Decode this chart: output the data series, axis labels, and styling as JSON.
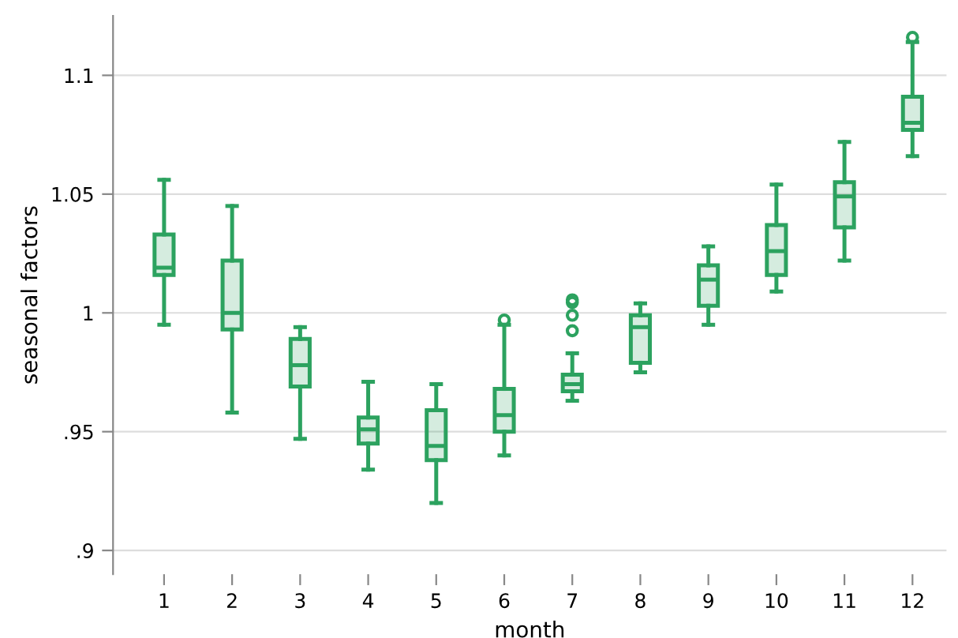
{
  "chart_data": {
    "type": "box",
    "xlabel": "month",
    "ylabel": "seasonal factors",
    "categories": [
      "1",
      "2",
      "3",
      "4",
      "5",
      "6",
      "7",
      "8",
      "9",
      "10",
      "11",
      "12"
    ],
    "color": "#2ca25f",
    "boxes": [
      {
        "low": 0.995,
        "q1": 1.016,
        "median": 1.019,
        "q3": 1.033,
        "high": 1.056
      },
      {
        "low": 0.958,
        "q1": 0.993,
        "median": 1.0,
        "q3": 1.022,
        "high": 1.045
      },
      {
        "low": 0.947,
        "q1": 0.969,
        "median": 0.978,
        "q3": 0.989,
        "high": 0.994
      },
      {
        "low": 0.934,
        "q1": 0.945,
        "median": 0.951,
        "q3": 0.956,
        "high": 0.971
      },
      {
        "low": 0.92,
        "q1": 0.938,
        "median": 0.944,
        "q3": 0.959,
        "high": 0.97
      },
      {
        "low": 0.94,
        "q1": 0.95,
        "median": 0.957,
        "q3": 0.968,
        "high": 0.995,
        "outliers": [
          0.997
        ]
      },
      {
        "low": 0.963,
        "q1": 0.967,
        "median": 0.97,
        "q3": 0.974,
        "high": 0.983,
        "outliers": [
          1.0055,
          1.0044,
          0.999,
          0.9925
        ]
      },
      {
        "low": 0.975,
        "q1": 0.979,
        "median": 0.994,
        "q3": 0.999,
        "high": 1.004
      },
      {
        "low": 0.995,
        "q1": 1.003,
        "median": 1.014,
        "q3": 1.02,
        "high": 1.028
      },
      {
        "low": 1.009,
        "q1": 1.016,
        "median": 1.026,
        "q3": 1.037,
        "high": 1.054
      },
      {
        "low": 1.022,
        "q1": 1.036,
        "median": 1.049,
        "q3": 1.055,
        "high": 1.072
      },
      {
        "low": 1.066,
        "q1": 1.077,
        "median": 1.08,
        "q3": 1.091,
        "high": 1.114,
        "outliers": [
          1.116
        ]
      }
    ],
    "ylim": [
      0.89,
      1.125
    ],
    "yticks": [
      {
        "value": 0.9,
        "label": ".9"
      },
      {
        "value": 0.95,
        "label": ".95"
      },
      1,
      {
        "value": 1.05,
        "label": "1.05"
      },
      {
        "value": 1.1,
        "label": "1.1"
      }
    ],
    "grid": "y"
  }
}
